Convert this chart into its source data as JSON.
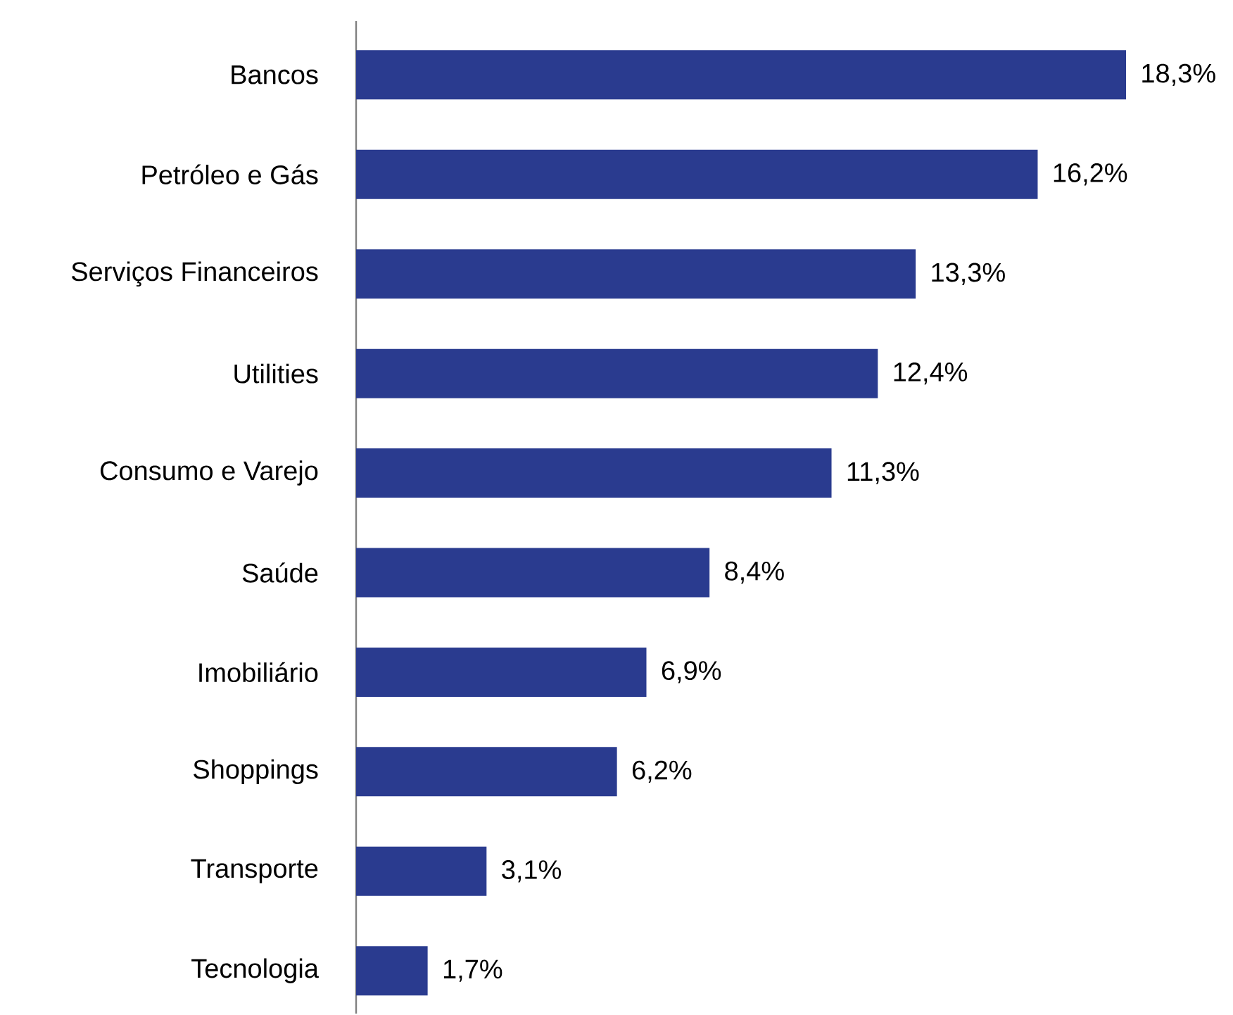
{
  "chart_data": {
    "type": "bar",
    "orientation": "horizontal",
    "categories": [
      "Bancos",
      "Petróleo e Gás",
      "Serviços Financeiros",
      "Utilities",
      "Consumo e Varejo",
      "Saúde",
      "Imobiliário",
      "Shoppings",
      "Transporte",
      "Tecnologia"
    ],
    "values": [
      18.3,
      16.2,
      13.3,
      12.4,
      11.3,
      8.4,
      6.9,
      6.2,
      3.1,
      1.7
    ],
    "value_labels": [
      "18,3%",
      "16,2%",
      "13,3%",
      "12,4%",
      "11,3%",
      "8,4%",
      "6,9%",
      "6,2%",
      "3,1%",
      "1,7%"
    ],
    "color": "#2a3b8f"
  }
}
